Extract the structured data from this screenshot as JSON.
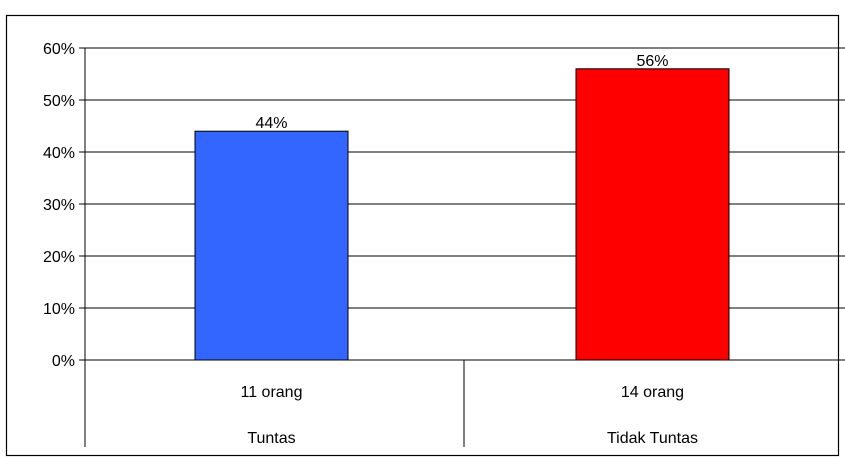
{
  "chart_data": {
    "type": "bar",
    "categories": [
      [
        "11 orang",
        "Tuntas"
      ],
      [
        "14 orang",
        "Tidak Tuntas"
      ]
    ],
    "values": [
      44,
      56
    ],
    "data_labels": [
      "44%",
      "56%"
    ],
    "colors": [
      "#3366ff",
      "#ff0000"
    ],
    "ylim": [
      0,
      60
    ],
    "yticks": [
      {
        "value": 0,
        "label": "0%"
      },
      {
        "value": 10,
        "label": "10%"
      },
      {
        "value": 20,
        "label": "20%"
      },
      {
        "value": 30,
        "label": "30%"
      },
      {
        "value": 40,
        "label": "40%"
      },
      {
        "value": 50,
        "label": "50%"
      },
      {
        "value": 60,
        "label": "60%"
      }
    ],
    "grid": true,
    "legend": "none",
    "title": "",
    "xlabel": "",
    "ylabel": ""
  }
}
